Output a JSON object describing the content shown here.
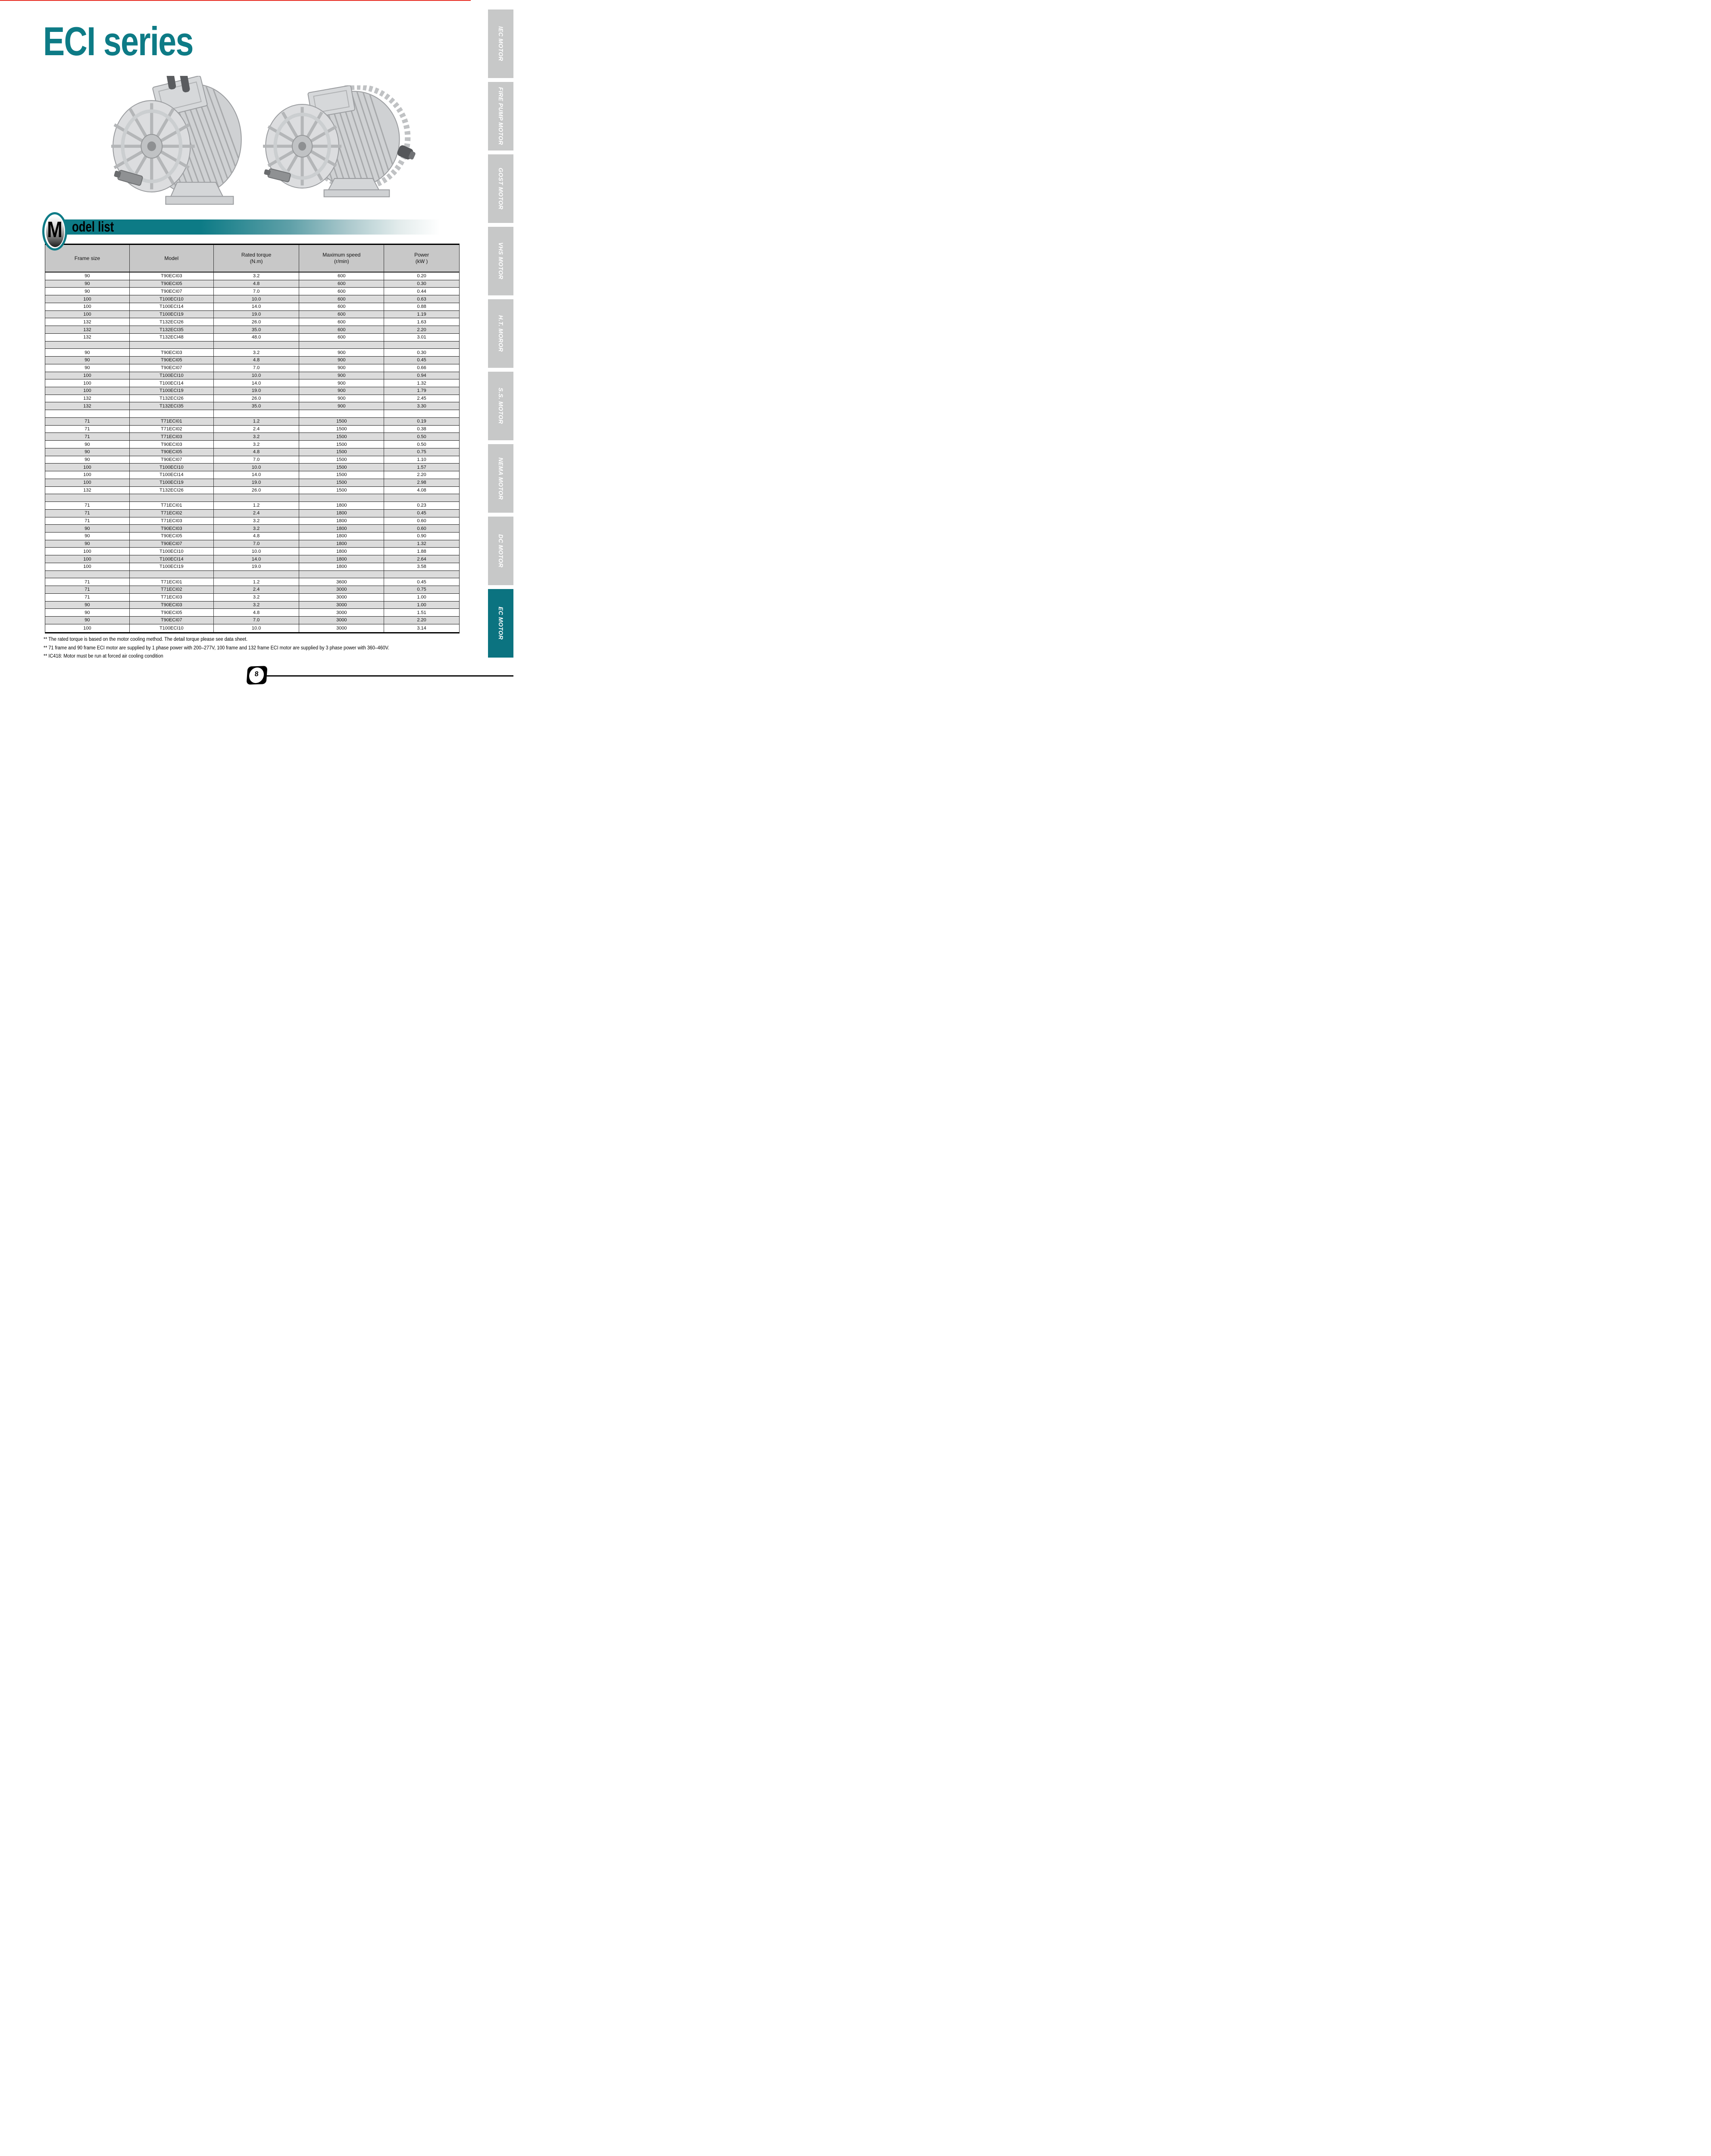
{
  "title": "ECI series",
  "section": {
    "initial": "M",
    "label": "odel list"
  },
  "table": {
    "headers": [
      {
        "l1": "Frame size",
        "l2": ""
      },
      {
        "l1": "Model",
        "l2": ""
      },
      {
        "l1": "Rated torque",
        "l2": "(N.m)"
      },
      {
        "l1": "Maximum speed",
        "l2": "(r/min)"
      },
      {
        "l1": "Power",
        "l2": "(kW )"
      }
    ],
    "rows": [
      [
        "90",
        "T90ECI03",
        "3.2",
        "600",
        "0.20"
      ],
      [
        "90",
        "T90ECI05",
        "4.8",
        "600",
        "0.30"
      ],
      [
        "90",
        "T90ECI07",
        "7.0",
        "600",
        "0.44"
      ],
      [
        "100",
        "T100ECI10",
        "10.0",
        "600",
        "0.63"
      ],
      [
        "100",
        "T100ECI14",
        "14.0",
        "600",
        "0.88"
      ],
      [
        "100",
        "T100ECI19",
        "19.0",
        "600",
        "1.19"
      ],
      [
        "132",
        "T132ECI26",
        "26.0",
        "600",
        "1.63"
      ],
      [
        "132",
        "T132ECI35",
        "35.0",
        "600",
        "2.20"
      ],
      [
        "132",
        "T132ECI48",
        "48.0",
        "600",
        "3.01"
      ],
      [
        "",
        "",
        "",
        "",
        ""
      ],
      [
        "90",
        "T90ECI03",
        "3.2",
        "900",
        "0.30"
      ],
      [
        "90",
        "T90ECI05",
        "4.8",
        "900",
        "0.45"
      ],
      [
        "90",
        "T90ECI07",
        "7.0",
        "900",
        "0.66"
      ],
      [
        "100",
        "T100ECI10",
        "10.0",
        "900",
        "0.94"
      ],
      [
        "100",
        "T100ECI14",
        "14.0",
        "900",
        "1.32"
      ],
      [
        "100",
        "T100ECI19",
        "19.0",
        "900",
        "1.79"
      ],
      [
        "132",
        "T132ECI26",
        "26.0",
        "900",
        "2.45"
      ],
      [
        "132",
        "T132ECI35",
        "35.0",
        "900",
        "3.30"
      ],
      [
        "",
        "",
        "",
        "",
        ""
      ],
      [
        "71",
        "T71ECI01",
        "1.2",
        "1500",
        "0.19"
      ],
      [
        "71",
        "T71ECI02",
        "2.4",
        "1500",
        "0.38"
      ],
      [
        "71",
        "T71ECI03",
        "3.2",
        "1500",
        "0.50"
      ],
      [
        "90",
        "T90ECI03",
        "3.2",
        "1500",
        "0.50"
      ],
      [
        "90",
        "T90ECI05",
        "4.8",
        "1500",
        "0.75"
      ],
      [
        "90",
        "T90ECI07",
        "7.0",
        "1500",
        "1.10"
      ],
      [
        "100",
        "T100ECI10",
        "10.0",
        "1500",
        "1.57"
      ],
      [
        "100",
        "T100ECI14",
        "14.0",
        "1500",
        "2.20"
      ],
      [
        "100",
        "T100ECI19",
        "19.0",
        "1500",
        "2.98"
      ],
      [
        "132",
        "T132ECI26",
        "26.0",
        "1500",
        "4.08"
      ],
      [
        "",
        "",
        "",
        "",
        ""
      ],
      [
        "71",
        "T71ECI01",
        "1.2",
        "1800",
        "0.23"
      ],
      [
        "71",
        "T71ECI02",
        "2.4",
        "1800",
        "0.45"
      ],
      [
        "71",
        "T71ECI03",
        "3.2",
        "1800",
        "0.60"
      ],
      [
        "90",
        "T90ECI03",
        "3.2",
        "1800",
        "0.60"
      ],
      [
        "90",
        "T90ECI05",
        "4.8",
        "1800",
        "0.90"
      ],
      [
        "90",
        "T90ECI07",
        "7.0",
        "1800",
        "1.32"
      ],
      [
        "100",
        "T100ECI10",
        "10.0",
        "1800",
        "1.88"
      ],
      [
        "100",
        "T100ECI14",
        "14.0",
        "1800",
        "2.64"
      ],
      [
        "100",
        "T100ECI19",
        "19.0",
        "1800",
        "3.58"
      ],
      [
        "",
        "",
        "",
        "",
        ""
      ],
      [
        "71",
        "T71ECI01",
        "1.2",
        "3600",
        "0.45"
      ],
      [
        "71",
        "T71ECI02",
        "2.4",
        "3000",
        "0.75"
      ],
      [
        "71",
        "T71ECI03",
        "3.2",
        "3000",
        "1.00"
      ],
      [
        "90",
        "T90ECI03",
        "3.2",
        "3000",
        "1.00"
      ],
      [
        "90",
        "T90ECI05",
        "4.8",
        "3000",
        "1.51"
      ],
      [
        "90",
        "T90ECI07",
        "7.0",
        "3000",
        "2.20"
      ],
      [
        "100",
        "T100ECI10",
        "10.0",
        "3000",
        "3.14"
      ]
    ]
  },
  "footnotes": [
    "** The rated torque is based on the motor cooling method. The detail torque please see data sheet.",
    "** 71 frame and 90 frame ECI motor are supplied by 1 phase power with 200–277V, 100 frame and 132 frame ECI motor are supplied by 3 phase power with 360–460V.",
    "** IC418: Motor must be run at forced air cooling condition"
  ],
  "sidebar": {
    "items": [
      {
        "label": "IEC MOTOR"
      },
      {
        "label": "FIRE PUMP MOTOR"
      },
      {
        "label": "GOST MOTOR"
      },
      {
        "label": "VHS MOTOR"
      },
      {
        "label": "H.T. MOROR"
      },
      {
        "label": "S.S. MOTOR"
      },
      {
        "label": "NEMA MOTOR"
      },
      {
        "label": "DC MOTOR"
      },
      {
        "label": "EC MOTOR",
        "active": true
      }
    ]
  },
  "page": {
    "number": "8"
  },
  "colors": {
    "teal": "#0d7b86",
    "active_tab_teal": "#0b7380",
    "tab_gray": "#c7c8c8",
    "header_gray": "#c8c8c8",
    "row_alt_gray": "#dcdcdc",
    "top_rule_red": "#e8342a"
  }
}
